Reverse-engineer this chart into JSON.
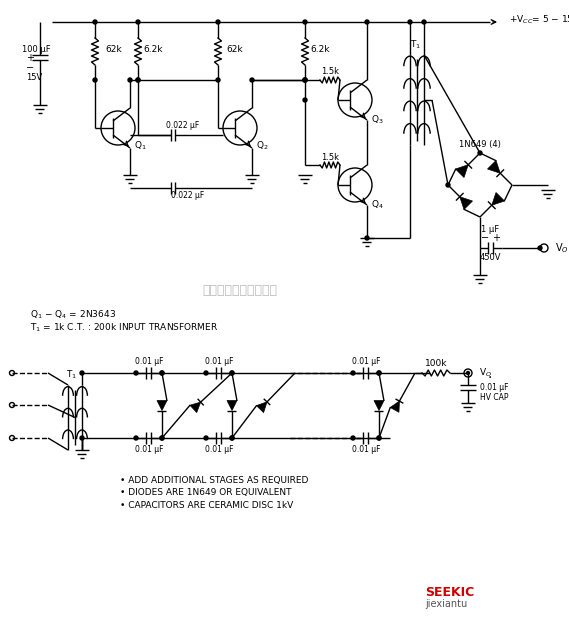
{
  "bg_color": "#ffffff",
  "line_color": "#000000",
  "fig_width": 5.69,
  "fig_height": 6.2,
  "watermark_text": "杭州将睷科技有限公司",
  "watermark_color": "#bbbbbb",
  "bullets": [
    "• ADD ADDITIONAL STAGES AS REQUIRED",
    "• DIODES ARE 1N649 OR EQUIVALENT",
    "• CAPACITORS ARE CERAMIC DISC 1kV"
  ]
}
